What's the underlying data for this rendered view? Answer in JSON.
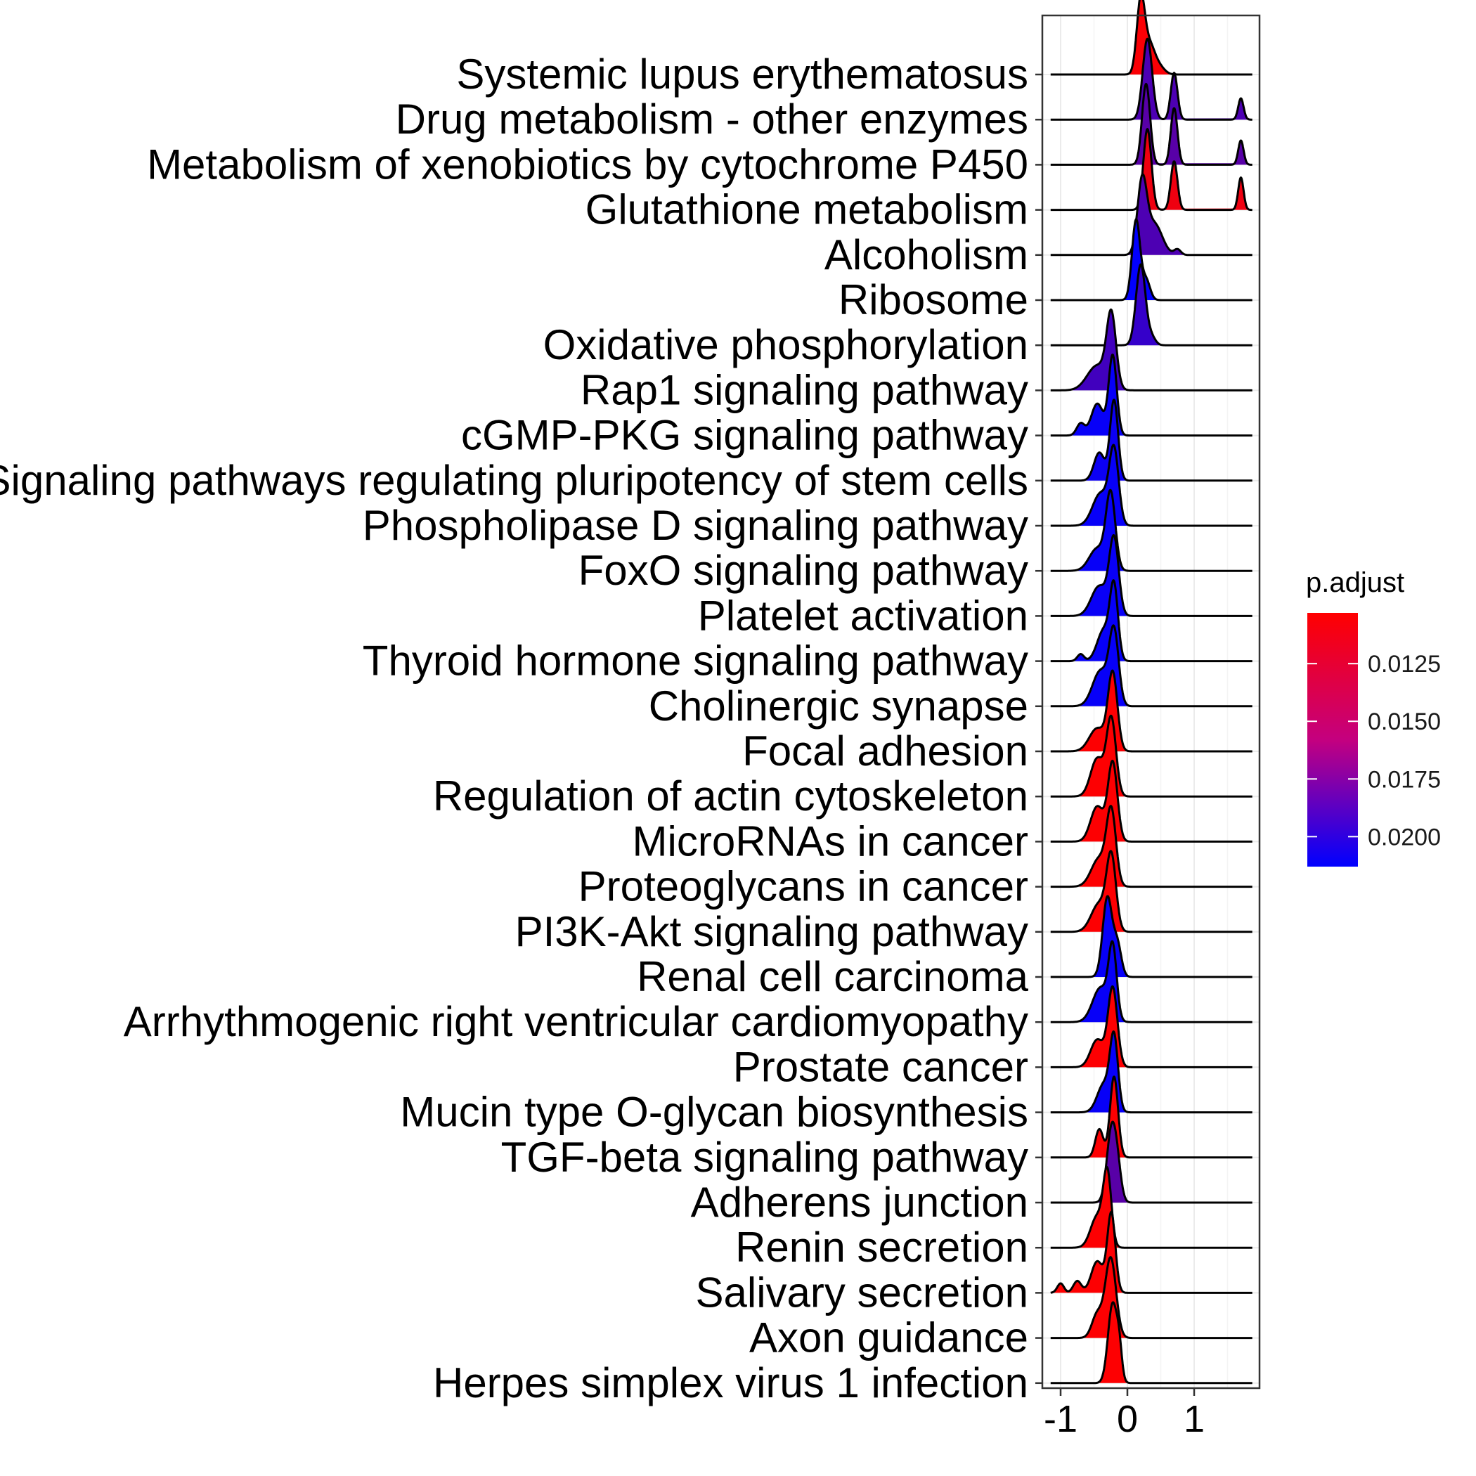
{
  "chart_data": {
    "type": "ridgeline",
    "xlim": [
      -1.2,
      1.95
    ],
    "x_ticks": [
      -1,
      0,
      1
    ],
    "x_tick_labels": [
      "-1",
      "0",
      "1"
    ],
    "grid": true,
    "legend": {
      "title": "p.adjust",
      "position": "right",
      "range": [
        0.0103,
        0.0213
      ],
      "ticks": [
        0.0125,
        0.015,
        0.0175,
        0.02
      ],
      "tick_labels": [
        "0.0125",
        "0.0150",
        "0.0175",
        "0.0200"
      ],
      "low_color": "#ff0000",
      "high_color": "#0000ff"
    },
    "categories": [
      "Systemic lupus erythematosus",
      "Drug metabolism - other enzymes",
      "Metabolism of xenobiotics by cytochrome P450",
      "Glutathione metabolism",
      "Alcoholism",
      "Ribosome",
      "Oxidative phosphorylation",
      "Rap1 signaling pathway",
      "cGMP-PKG signaling pathway",
      "Signaling pathways regulating pluripotency of stem cells",
      "Phospholipase D signaling pathway",
      "FoxO signaling pathway",
      "Platelet activation",
      "Thyroid hormone signaling pathway",
      "Cholinergic synapse",
      "Focal adhesion",
      "Regulation of actin cytoskeleton",
      "MicroRNAs in cancer",
      "Proteoglycans in cancer",
      "PI3K-Akt signaling pathway",
      "Renal cell carcinoma",
      "Arrhythmogenic right ventricular cardiomyopathy",
      "Prostate cancer",
      "Mucin type O-glycan biosynthesis",
      "TGF-beta signaling pathway",
      "Adherens junction",
      "Renin secretion",
      "Salivary secretion",
      "Axon guidance",
      "Herpes simplex virus 1 infection"
    ],
    "series": [
      {
        "name": "Systemic lupus erythematosus",
        "p_adjust": 0.0105,
        "components": [
          [
            0.2,
            0.06,
            1.0
          ],
          [
            0.33,
            0.08,
            0.4
          ],
          [
            0.48,
            0.08,
            0.1
          ]
        ]
      },
      {
        "name": "Drug metabolism - other enzymes",
        "p_adjust": 0.018,
        "components": [
          [
            0.3,
            0.07,
            0.95
          ],
          [
            0.7,
            0.05,
            0.55
          ],
          [
            1.7,
            0.04,
            0.25
          ]
        ]
      },
      {
        "name": "Metabolism of xenobiotics by cytochrome P450",
        "p_adjust": 0.0175,
        "components": [
          [
            0.28,
            0.06,
            1.0
          ],
          [
            0.7,
            0.05,
            0.7
          ],
          [
            1.7,
            0.04,
            0.3
          ]
        ]
      },
      {
        "name": "Glutathione metabolism",
        "p_adjust": 0.011,
        "components": [
          [
            0.3,
            0.06,
            1.0
          ],
          [
            0.7,
            0.05,
            0.6
          ],
          [
            1.7,
            0.04,
            0.4
          ]
        ]
      },
      {
        "name": "Alcoholism",
        "p_adjust": 0.018,
        "components": [
          [
            0.22,
            0.07,
            1.0
          ],
          [
            0.4,
            0.12,
            0.45
          ],
          [
            0.75,
            0.05,
            0.08
          ]
        ]
      },
      {
        "name": "Ribosome",
        "p_adjust": 0.0212,
        "components": [
          [
            0.13,
            0.06,
            1.0
          ],
          [
            0.28,
            0.06,
            0.25
          ]
        ]
      },
      {
        "name": "Oxidative phosphorylation",
        "p_adjust": 0.019,
        "components": [
          [
            0.2,
            0.07,
            1.0
          ],
          [
            0.36,
            0.06,
            0.1
          ]
        ]
      },
      {
        "name": "Rap1 signaling pathway",
        "p_adjust": 0.0185,
        "components": [
          [
            -0.24,
            0.07,
            1.0
          ],
          [
            -0.45,
            0.15,
            0.35
          ]
        ]
      },
      {
        "name": "cGMP-PKG signaling pathway",
        "p_adjust": 0.021,
        "components": [
          [
            -0.22,
            0.06,
            1.0
          ],
          [
            -0.45,
            0.09,
            0.4
          ],
          [
            -0.7,
            0.06,
            0.15
          ]
        ]
      },
      {
        "name": "Signaling pathways regulating pluripotency of stem cells",
        "p_adjust": 0.0208,
        "components": [
          [
            -0.2,
            0.06,
            1.0
          ],
          [
            -0.42,
            0.08,
            0.35
          ]
        ]
      },
      {
        "name": "Phospholipase D signaling pathway",
        "p_adjust": 0.021,
        "components": [
          [
            -0.2,
            0.07,
            1.0
          ],
          [
            -0.4,
            0.12,
            0.45
          ]
        ]
      },
      {
        "name": "FoxO signaling pathway",
        "p_adjust": 0.021,
        "components": [
          [
            -0.25,
            0.07,
            1.0
          ],
          [
            -0.45,
            0.12,
            0.3
          ]
        ]
      },
      {
        "name": "Platelet activation",
        "p_adjust": 0.0209,
        "components": [
          [
            -0.2,
            0.07,
            1.0
          ],
          [
            -0.42,
            0.12,
            0.4
          ]
        ]
      },
      {
        "name": "Thyroid hormone signaling pathway",
        "p_adjust": 0.021,
        "components": [
          [
            -0.2,
            0.06,
            1.0
          ],
          [
            -0.35,
            0.1,
            0.45
          ],
          [
            -0.7,
            0.05,
            0.1
          ]
        ]
      },
      {
        "name": "Cholinergic synapse",
        "p_adjust": 0.021,
        "components": [
          [
            -0.2,
            0.07,
            1.0
          ],
          [
            -0.4,
            0.12,
            0.5
          ]
        ]
      },
      {
        "name": "Focal adhesion",
        "p_adjust": 0.0104,
        "components": [
          [
            -0.22,
            0.07,
            1.0
          ],
          [
            -0.45,
            0.12,
            0.3
          ]
        ]
      },
      {
        "name": "Regulation of actin cytoskeleton",
        "p_adjust": 0.0104,
        "components": [
          [
            -0.24,
            0.07,
            1.0
          ],
          [
            -0.45,
            0.1,
            0.5
          ]
        ]
      },
      {
        "name": "MicroRNAs in cancer",
        "p_adjust": 0.0104,
        "components": [
          [
            -0.22,
            0.07,
            1.0
          ],
          [
            -0.45,
            0.1,
            0.45
          ]
        ]
      },
      {
        "name": "Proteoglycans in cancer",
        "p_adjust": 0.0104,
        "components": [
          [
            -0.24,
            0.07,
            1.0
          ],
          [
            -0.42,
            0.12,
            0.4
          ]
        ]
      },
      {
        "name": "PI3K-Akt signaling pathway",
        "p_adjust": 0.0104,
        "components": [
          [
            -0.24,
            0.07,
            1.0
          ],
          [
            -0.42,
            0.12,
            0.4
          ]
        ]
      },
      {
        "name": "Renal cell carcinoma",
        "p_adjust": 0.021,
        "components": [
          [
            -0.3,
            0.07,
            1.0
          ],
          [
            -0.15,
            0.06,
            0.4
          ]
        ]
      },
      {
        "name": "Arrhythmogenic right ventricular cardiomyopathy",
        "p_adjust": 0.021,
        "components": [
          [
            -0.22,
            0.06,
            1.0
          ],
          [
            -0.4,
            0.12,
            0.5
          ]
        ]
      },
      {
        "name": "Prostate cancer",
        "p_adjust": 0.0104,
        "components": [
          [
            -0.22,
            0.07,
            1.0
          ],
          [
            -0.45,
            0.1,
            0.35
          ]
        ]
      },
      {
        "name": "Mucin type O-glycan biosynthesis",
        "p_adjust": 0.021,
        "components": [
          [
            -0.2,
            0.06,
            1.0
          ],
          [
            -0.35,
            0.1,
            0.4
          ]
        ]
      },
      {
        "name": "TGF-beta signaling pathway",
        "p_adjust": 0.0104,
        "components": [
          [
            -0.2,
            0.06,
            1.0
          ],
          [
            -0.42,
            0.06,
            0.35
          ]
        ]
      },
      {
        "name": "Adherens junction",
        "p_adjust": 0.0175,
        "components": [
          [
            -0.24,
            0.07,
            1.0
          ],
          [
            -0.15,
            0.06,
            0.4
          ]
        ]
      },
      {
        "name": "Renin secretion",
        "p_adjust": 0.0104,
        "components": [
          [
            -0.3,
            0.06,
            1.0
          ],
          [
            -0.45,
            0.1,
            0.45
          ]
        ]
      },
      {
        "name": "Salivary secretion",
        "p_adjust": 0.0104,
        "components": [
          [
            -0.24,
            0.06,
            1.0
          ],
          [
            -0.45,
            0.09,
            0.4
          ],
          [
            -0.75,
            0.06,
            0.15
          ],
          [
            -1.0,
            0.05,
            0.12
          ]
        ]
      },
      {
        "name": "Axon guidance",
        "p_adjust": 0.0104,
        "components": [
          [
            -0.25,
            0.08,
            1.0
          ],
          [
            -0.45,
            0.08,
            0.3
          ]
        ]
      },
      {
        "name": "Herpes simplex virus 1 infection",
        "p_adjust": 0.0104,
        "components": [
          [
            -0.22,
            0.07,
            1.0
          ],
          [
            -0.12,
            0.04,
            0.3
          ]
        ]
      }
    ]
  }
}
